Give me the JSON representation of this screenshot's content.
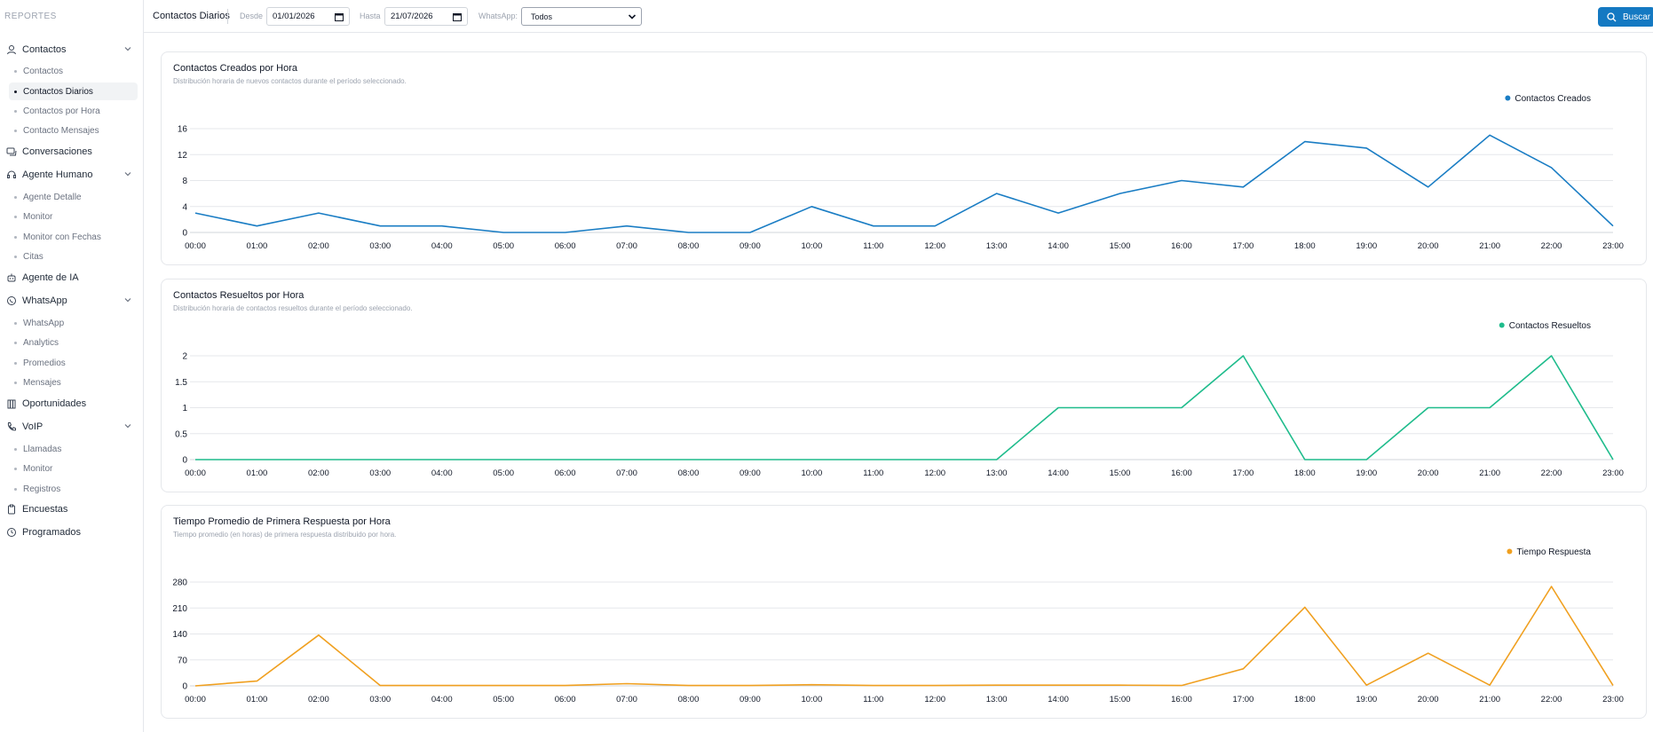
{
  "sidebar": {
    "title": "REPORTES",
    "groups": [
      {
        "label": "Contactos",
        "icon": "user-icon",
        "items": [
          "Contactos",
          "Contactos Diarios",
          "Contactos por Hora",
          "Contacto Mensajes"
        ]
      },
      {
        "label": "Conversaciones",
        "icon": "chat-icon",
        "items": []
      },
      {
        "label": "Agente Humano",
        "icon": "headset-icon",
        "items": [
          "Agente Detalle",
          "Monitor",
          "Monitor con Fechas",
          "Citas"
        ]
      },
      {
        "label": "Agente de IA",
        "icon": "robot-icon",
        "items": []
      },
      {
        "label": "WhatsApp",
        "icon": "whatsapp-icon",
        "items": [
          "WhatsApp",
          "Analytics",
          "Promedios",
          "Mensajes"
        ]
      },
      {
        "label": "Oportunidades",
        "icon": "building-icon",
        "items": []
      },
      {
        "label": "VoIP",
        "icon": "phone-icon",
        "items": [
          "Llamadas",
          "Monitor",
          "Registros"
        ]
      },
      {
        "label": "Encuestas",
        "icon": "clipboard-icon",
        "items": []
      },
      {
        "label": "Programados",
        "icon": "clock-icon",
        "items": []
      }
    ],
    "active_item": "Contactos Diarios"
  },
  "topbar": {
    "title": "Contactos Diarios",
    "from_label": "Desde",
    "from_value": "01/01/2026",
    "to_label": "Hasta",
    "to_value": "21/07/2026",
    "whatsapp_label": "WhatsApp:",
    "whatsapp_value": "Todos",
    "search_label": "Buscar"
  },
  "colors": {
    "accent": "#1479c2",
    "created": "#1a7dc4",
    "resolved": "#1fbc8c",
    "response": "#f0a020"
  },
  "chart_data": [
    {
      "type": "line",
      "title": "Contactos Creados por Hora",
      "subtitle": "Distribución horaria de nuevos contactos durante el período seleccionado.",
      "x": [
        "00:00",
        "01:00",
        "02:00",
        "03:00",
        "04:00",
        "05:00",
        "06:00",
        "07:00",
        "08:00",
        "09:00",
        "10:00",
        "11:00",
        "12:00",
        "13:00",
        "14:00",
        "15:00",
        "16:00",
        "17:00",
        "18:00",
        "19:00",
        "20:00",
        "21:00",
        "22:00",
        "23:00"
      ],
      "series": [
        {
          "name": "Contactos Creados",
          "values": [
            3,
            1,
            3,
            1,
            1,
            0,
            0,
            1,
            0,
            0,
            4,
            1,
            1,
            6,
            3,
            6,
            8,
            7,
            14,
            13,
            7,
            15,
            10,
            1
          ]
        }
      ],
      "yticks": [
        "0",
        "4",
        "8",
        "12",
        "16"
      ],
      "ylim": [
        0,
        16
      ],
      "legend": "top-right",
      "grid": true
    },
    {
      "type": "line",
      "title": "Contactos Resueltos por Hora",
      "subtitle": "Distribución horaria de contactos resueltos durante el período seleccionado.",
      "x": [
        "00:00",
        "01:00",
        "02:00",
        "03:00",
        "04:00",
        "05:00",
        "06:00",
        "07:00",
        "08:00",
        "09:00",
        "10:00",
        "11:00",
        "12:00",
        "13:00",
        "14:00",
        "15:00",
        "16:00",
        "17:00",
        "18:00",
        "19:00",
        "20:00",
        "21:00",
        "22:00",
        "23:00"
      ],
      "series": [
        {
          "name": "Contactos Resueltos",
          "values": [
            0,
            0,
            0,
            0,
            0,
            0,
            0,
            0,
            0,
            0,
            0,
            0,
            0,
            0,
            1,
            1,
            1,
            2,
            0,
            0,
            1,
            1,
            2,
            0
          ]
        }
      ],
      "yticks": [
        "0",
        "0.5",
        "1",
        "1.5",
        "2"
      ],
      "ylim": [
        0,
        2
      ],
      "legend": "top-right",
      "grid": true
    },
    {
      "type": "line",
      "title": "Tiempo Promedio de Primera Respuesta por Hora",
      "subtitle": "Tiempo promedio (en horas) de primera respuesta distribuido por hora.",
      "x": [
        "00:00",
        "01:00",
        "02:00",
        "03:00",
        "04:00",
        "05:00",
        "06:00",
        "07:00",
        "08:00",
        "09:00",
        "10:00",
        "11:00",
        "12:00",
        "13:00",
        "14:00",
        "15:00",
        "16:00",
        "17:00",
        "18:00",
        "19:00",
        "20:00",
        "21:00",
        "22:00",
        "23:00"
      ],
      "series": [
        {
          "name": "Tiempo Respuesta",
          "values": [
            0,
            13,
            137,
            1,
            1,
            1,
            1,
            6,
            1,
            1,
            3,
            1,
            1,
            2,
            2,
            2,
            1,
            46,
            212,
            2,
            88,
            2,
            268,
            1
          ]
        }
      ],
      "yticks": [
        "0",
        "70",
        "140",
        "210",
        "280"
      ],
      "ylim": [
        0,
        280
      ],
      "legend": "top-right",
      "grid": true
    }
  ]
}
